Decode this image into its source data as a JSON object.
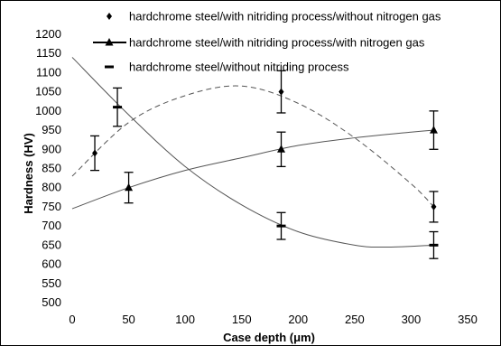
{
  "chart_data": {
    "type": "scatter",
    "xlabel": "Case depth (μm)",
    "ylabel": "Hardness (HV)",
    "xlim": [
      0,
      350
    ],
    "ylim": [
      500,
      1200
    ],
    "x_ticks": [
      0,
      50,
      100,
      150,
      200,
      250,
      300,
      350
    ],
    "y_ticks": [
      500,
      550,
      600,
      650,
      700,
      750,
      800,
      850,
      900,
      950,
      1000,
      1050,
      1100,
      1150,
      1200
    ],
    "grid": false,
    "legend_position": "top",
    "series": [
      {
        "name": "hardchrome steel/with nitriding process/without nitrogen gas",
        "marker": "diamond",
        "x": [
          20,
          185,
          320
        ],
        "y": [
          890,
          1050,
          750
        ],
        "err": [
          45,
          55,
          40
        ],
        "trend": "polynomial",
        "trend_style": "dashed",
        "trend_points": [
          [
            0,
            830
          ],
          [
            50,
            970
          ],
          [
            100,
            1040
          ],
          [
            150,
            1065
          ],
          [
            200,
            1020
          ],
          [
            250,
            930
          ],
          [
            300,
            810
          ],
          [
            320,
            750
          ]
        ]
      },
      {
        "name": "hardchrome steel/with nitriding process/with nitrogen gas",
        "marker": "triangle",
        "x": [
          50,
          185,
          320
        ],
        "y": [
          800,
          900,
          950
        ],
        "err": [
          40,
          45,
          50
        ],
        "trend": "polynomial",
        "trend_style": "solid",
        "trend_points": [
          [
            0,
            745
          ],
          [
            50,
            800
          ],
          [
            100,
            845
          ],
          [
            150,
            878
          ],
          [
            200,
            910
          ],
          [
            250,
            930
          ],
          [
            300,
            945
          ],
          [
            320,
            950
          ]
        ]
      },
      {
        "name": "hardchrome steel/without nitriding process",
        "marker": "dash",
        "x": [
          40,
          185,
          320
        ],
        "y": [
          1010,
          700,
          650
        ],
        "err": [
          50,
          35,
          35
        ],
        "trend": "polynomial",
        "trend_style": "solid",
        "trend_points": [
          [
            0,
            1140
          ],
          [
            50,
            990
          ],
          [
            100,
            855
          ],
          [
            150,
            755
          ],
          [
            200,
            685
          ],
          [
            250,
            650
          ],
          [
            280,
            645
          ],
          [
            320,
            650
          ]
        ]
      }
    ]
  }
}
